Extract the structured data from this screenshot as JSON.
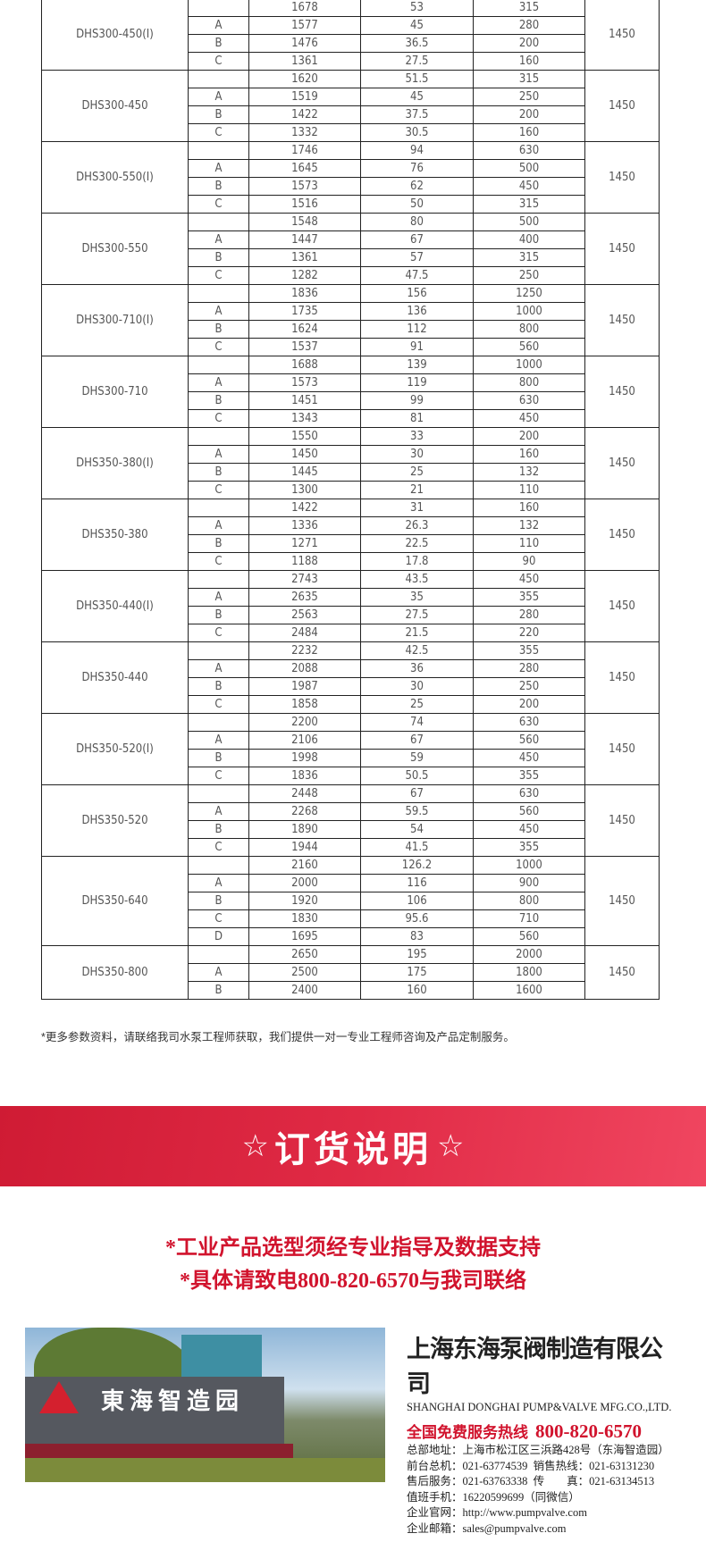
{
  "table": {
    "groups": [
      {
        "model": "DHS300-450(Ⅰ)",
        "speed": "1450",
        "rows": [
          [
            "",
            "1678",
            "53",
            "315"
          ],
          [
            "A",
            "1577",
            "45",
            "280"
          ],
          [
            "B",
            "1476",
            "36.5",
            "200"
          ],
          [
            "C",
            "1361",
            "27.5",
            "160"
          ]
        ]
      },
      {
        "model": "DHS300-450",
        "speed": "1450",
        "rows": [
          [
            "",
            "1620",
            "51.5",
            "315"
          ],
          [
            "A",
            "1519",
            "45",
            "250"
          ],
          [
            "B",
            "1422",
            "37.5",
            "200"
          ],
          [
            "C",
            "1332",
            "30.5",
            "160"
          ]
        ]
      },
      {
        "model": "DHS300-550(Ⅰ)",
        "speed": "1450",
        "rows": [
          [
            "",
            "1746",
            "94",
            "630"
          ],
          [
            "A",
            "1645",
            "76",
            "500"
          ],
          [
            "B",
            "1573",
            "62",
            "450"
          ],
          [
            "C",
            "1516",
            "50",
            "315"
          ]
        ]
      },
      {
        "model": "DHS300-550",
        "speed": "1450",
        "rows": [
          [
            "",
            "1548",
            "80",
            "500"
          ],
          [
            "A",
            "1447",
            "67",
            "400"
          ],
          [
            "B",
            "1361",
            "57",
            "315"
          ],
          [
            "C",
            "1282",
            "47.5",
            "250"
          ]
        ]
      },
      {
        "model": "DHS300-710(Ⅰ)",
        "speed": "1450",
        "rows": [
          [
            "",
            "1836",
            "156",
            "1250"
          ],
          [
            "A",
            "1735",
            "136",
            "1000"
          ],
          [
            "B",
            "1624",
            "112",
            "800"
          ],
          [
            "C",
            "1537",
            "91",
            "560"
          ]
        ]
      },
      {
        "model": "DHS300-710",
        "speed": "1450",
        "rows": [
          [
            "",
            "1688",
            "139",
            "1000"
          ],
          [
            "A",
            "1573",
            "119",
            "800"
          ],
          [
            "B",
            "1451",
            "99",
            "630"
          ],
          [
            "C",
            "1343",
            "81",
            "450"
          ]
        ]
      },
      {
        "model": "DHS350-380(Ⅰ)",
        "speed": "1450",
        "rows": [
          [
            "",
            "1550",
            "33",
            "200"
          ],
          [
            "A",
            "1450",
            "30",
            "160"
          ],
          [
            "B",
            "1445",
            "25",
            "132"
          ],
          [
            "C",
            "1300",
            "21",
            "110"
          ]
        ]
      },
      {
        "model": "DHS350-380",
        "speed": "1450",
        "rows": [
          [
            "",
            "1422",
            "31",
            "160"
          ],
          [
            "A",
            "1336",
            "26.3",
            "132"
          ],
          [
            "B",
            "1271",
            "22.5",
            "110"
          ],
          [
            "C",
            "1188",
            "17.8",
            "90"
          ]
        ]
      },
      {
        "model": "DHS350-440(Ⅰ)",
        "speed": "1450",
        "rows": [
          [
            "",
            "2743",
            "43.5",
            "450"
          ],
          [
            "A",
            "2635",
            "35",
            "355"
          ],
          [
            "B",
            "2563",
            "27.5",
            "280"
          ],
          [
            "C",
            "2484",
            "21.5",
            "220"
          ]
        ]
      },
      {
        "model": "DHS350-440",
        "speed": "1450",
        "rows": [
          [
            "",
            "2232",
            "42.5",
            "355"
          ],
          [
            "A",
            "2088",
            "36",
            "280"
          ],
          [
            "B",
            "1987",
            "30",
            "250"
          ],
          [
            "C",
            "1858",
            "25",
            "200"
          ]
        ]
      },
      {
        "model": "DHS350-520(Ⅰ)",
        "speed": "1450",
        "rows": [
          [
            "",
            "2200",
            "74",
            "630"
          ],
          [
            "A",
            "2106",
            "67",
            "560"
          ],
          [
            "B",
            "1998",
            "59",
            "450"
          ],
          [
            "C",
            "1836",
            "50.5",
            "355"
          ]
        ]
      },
      {
        "model": "DHS350-520",
        "speed": "1450",
        "rows": [
          [
            "",
            "2448",
            "67",
            "630"
          ],
          [
            "A",
            "2268",
            "59.5",
            "560"
          ],
          [
            "B",
            "1890",
            "54",
            "450"
          ],
          [
            "C",
            "1944",
            "41.5",
            "355"
          ]
        ]
      },
      {
        "model": "DHS350-640",
        "speed": "1450",
        "rows": [
          [
            "",
            "2160",
            "126.2",
            "1000"
          ],
          [
            "A",
            "2000",
            "116",
            "900"
          ],
          [
            "B",
            "1920",
            "106",
            "800"
          ],
          [
            "C",
            "1830",
            "95.6",
            "710"
          ],
          [
            "D",
            "1695",
            "83",
            "560"
          ]
        ]
      },
      {
        "model": "DHS350-800",
        "speed": "1450",
        "rows": [
          [
            "",
            "2650",
            "195",
            "2000"
          ],
          [
            "A",
            "2500",
            "175",
            "1800"
          ],
          [
            "B",
            "2400",
            "160",
            "1600"
          ]
        ]
      }
    ]
  },
  "note": "*更多参数资料，请联络我司水泵工程师获取，我们提供一对一专业工程师咨询及产品定制服务。",
  "banner": {
    "star": "☆",
    "title": "订货说明",
    "color": "#d81e3a"
  },
  "order_lines": [
    "*工业产品选型须经专业指导及数据支持",
    "*具体请致电800-820-6570与我司联络"
  ],
  "photo": {
    "sign_text": "東海智造园"
  },
  "company": {
    "name_cn": "上海东海泵阀制造有限公司",
    "name_en": "SHANGHAI DONGHAI PUMP&VALVE MFG.CO.,LTD.",
    "hotline_label": "全国免费服务热线",
    "hotline": "800-820-6570",
    "lines": [
      "总部地址：上海市松江区三浜路428号（东海智造园）",
      "前台总机：021-63774539  销售热线：021-63131230",
      "售后服务：021-63763338  传　　真：021-63134513",
      "值班手机：16220599699（同微信）",
      "企业官网：http://www.pumpvalve.com",
      "企业邮箱：sales@pumpvalve.com"
    ]
  }
}
